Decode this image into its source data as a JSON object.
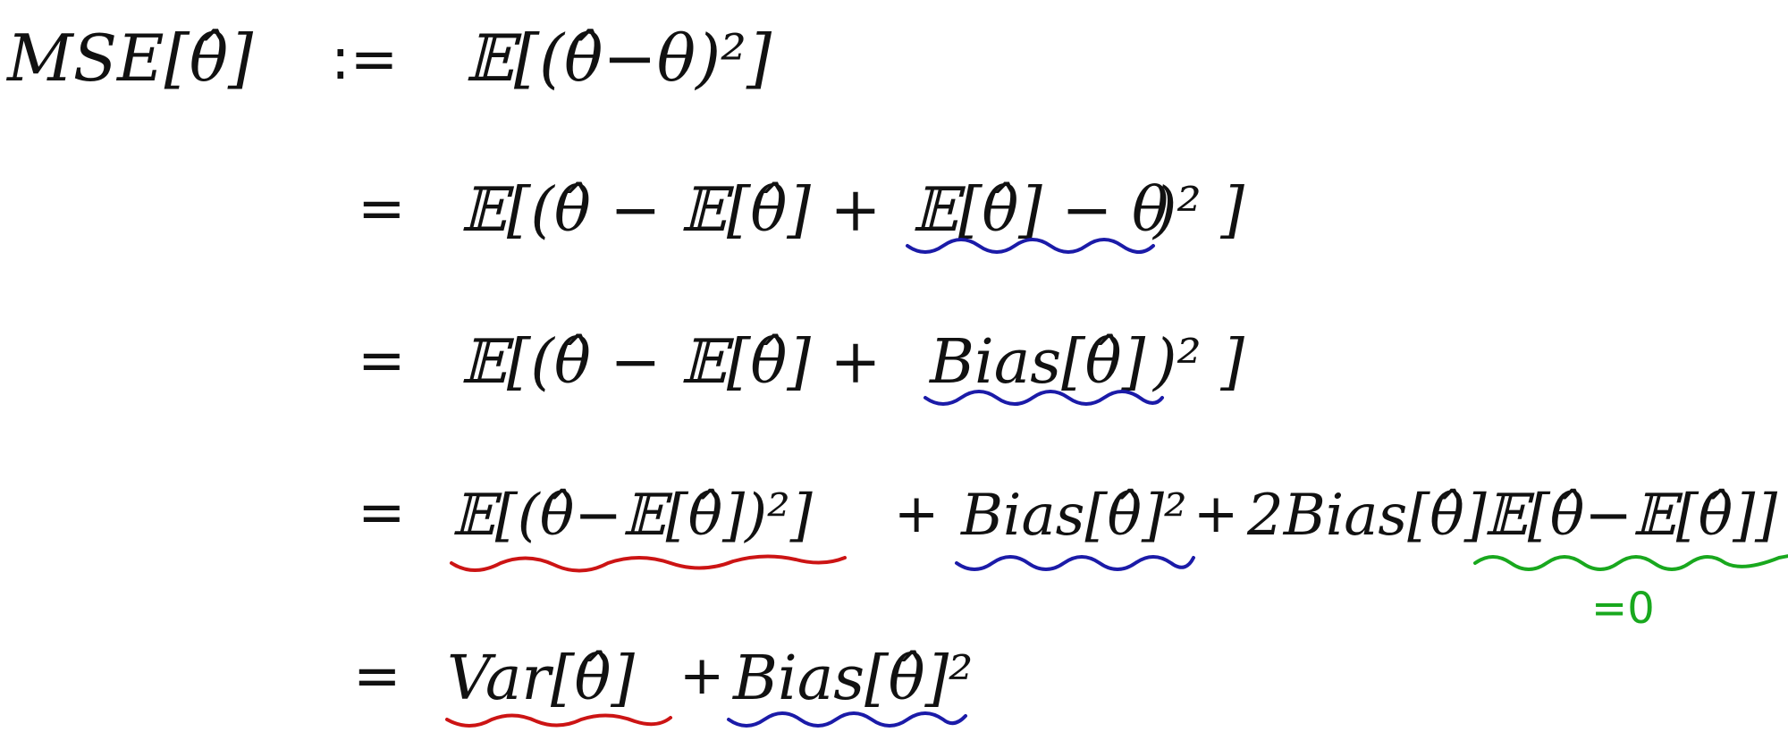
{
  "colors": {
    "ink": "#111111",
    "bias_underline": "#1b1ba8",
    "variance_underline": "#cc1414",
    "zero_term_underline": "#19a81e",
    "zero_label": "#19a81e"
  },
  "line1": {
    "lhs": "MSE[θ̂]",
    "def_sign": ":=",
    "rhs": "𝔼[(θ̂−θ)²]"
  },
  "line2": {
    "eq": "=",
    "head": "𝔼[(θ̂ − 𝔼[θ̂] + ",
    "bias_part": "𝔼[θ̂] − θ",
    "tail": ")² ]"
  },
  "line3": {
    "eq": "=",
    "head": "𝔼[(θ̂ − 𝔼[θ̂] + ",
    "bias_part": "Bias[θ̂]",
    "tail": ")² ]"
  },
  "line4": {
    "eq": "=",
    "variance_part": "𝔼[(θ̂−𝔼[θ̂])²]",
    "plus1": "+",
    "bias_sq_part": "Bias[θ̂]²",
    "plus2": "+",
    "cross_coef": "2Bias[θ̂]",
    "zero_part": "𝔼[θ̂−𝔼[θ̂]]",
    "zero_label": "=0"
  },
  "line5": {
    "eq": "=",
    "var_part": "Var[θ̂]",
    "plus": "+",
    "bias_sq_part": "Bias[θ̂]²"
  }
}
